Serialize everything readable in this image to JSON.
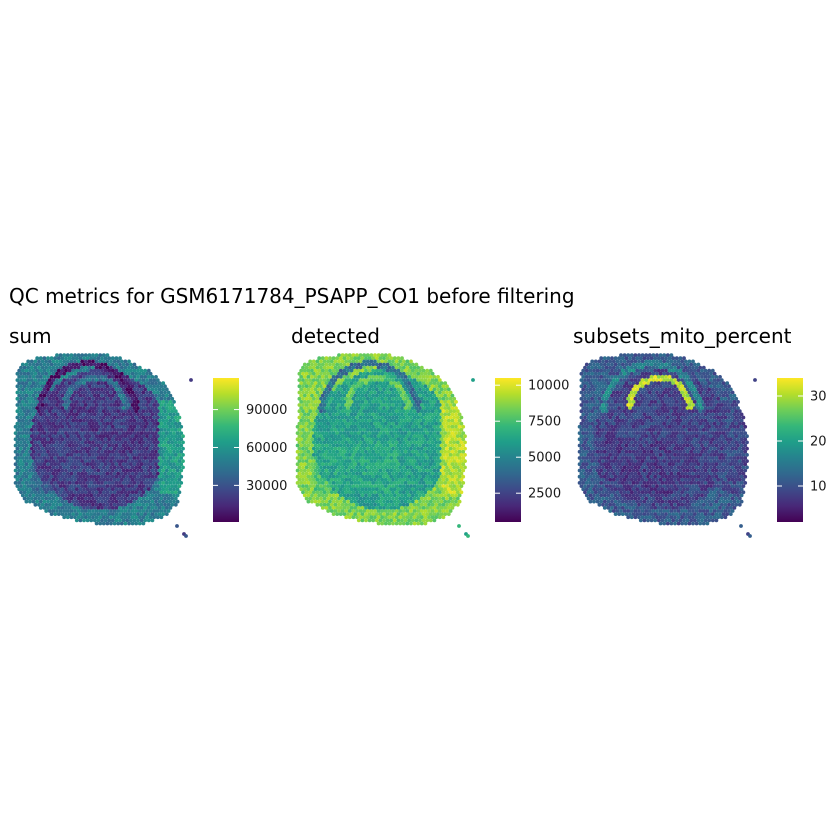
{
  "title": "QC metrics for GSM6171784_PSAPP_CO1 before filtering",
  "colors": {
    "background": "#ffffff",
    "viridis": [
      "#440154",
      "#482878",
      "#3e4989",
      "#31688e",
      "#26828e",
      "#1f9e89",
      "#35b779",
      "#6ece58",
      "#b5de2b",
      "#fde725"
    ]
  },
  "chart_data": [
    {
      "type": "scatter",
      "subtype": "spatial-hex-spot-map",
      "title": "sum",
      "xlabel": "",
      "ylabel": "",
      "grid": false,
      "legend": "right",
      "colorscale": "viridis",
      "color_range": [
        1000,
        115000
      ],
      "colorbar_ticks": [
        30000,
        60000,
        90000
      ],
      "colorbar_labels": [
        "30000",
        "60000",
        "90000"
      ],
      "regions": {
        "base": 0.17,
        "cortex_outer": 0.42,
        "corpus_callosum": 0.05,
        "hippocampus_band": 0.38,
        "lateral_edge": 0.55,
        "striatum": 0.2
      }
    },
    {
      "type": "scatter",
      "subtype": "spatial-hex-spot-map",
      "title": "detected",
      "xlabel": "",
      "ylabel": "",
      "grid": false,
      "legend": "right",
      "colorscale": "viridis",
      "color_range": [
        500,
        10500
      ],
      "colorbar_ticks": [
        2500,
        5000,
        7500,
        10000
      ],
      "colorbar_labels": [
        "2500",
        "5000",
        "7500",
        "10000"
      ],
      "regions": {
        "base": 0.56,
        "cortex_outer": 0.8,
        "corpus_callosum": 0.35,
        "hippocampus_band": 0.75,
        "lateral_edge": 0.88,
        "striatum": 0.62
      }
    },
    {
      "type": "scatter",
      "subtype": "spatial-hex-spot-map",
      "title": "subsets_mito_percent",
      "xlabel": "",
      "ylabel": "",
      "grid": false,
      "legend": "right",
      "colorscale": "viridis",
      "color_range": [
        2,
        34
      ],
      "colorbar_ticks": [
        10,
        20,
        30
      ],
      "colorbar_labels": [
        "10",
        "20",
        "30"
      ],
      "regions": {
        "base": 0.2,
        "cortex_outer": 0.28,
        "corpus_callosum": 0.45,
        "hippocampus_band": 0.9,
        "lateral_edge": 0.22,
        "striatum": 0.15
      }
    }
  ]
}
